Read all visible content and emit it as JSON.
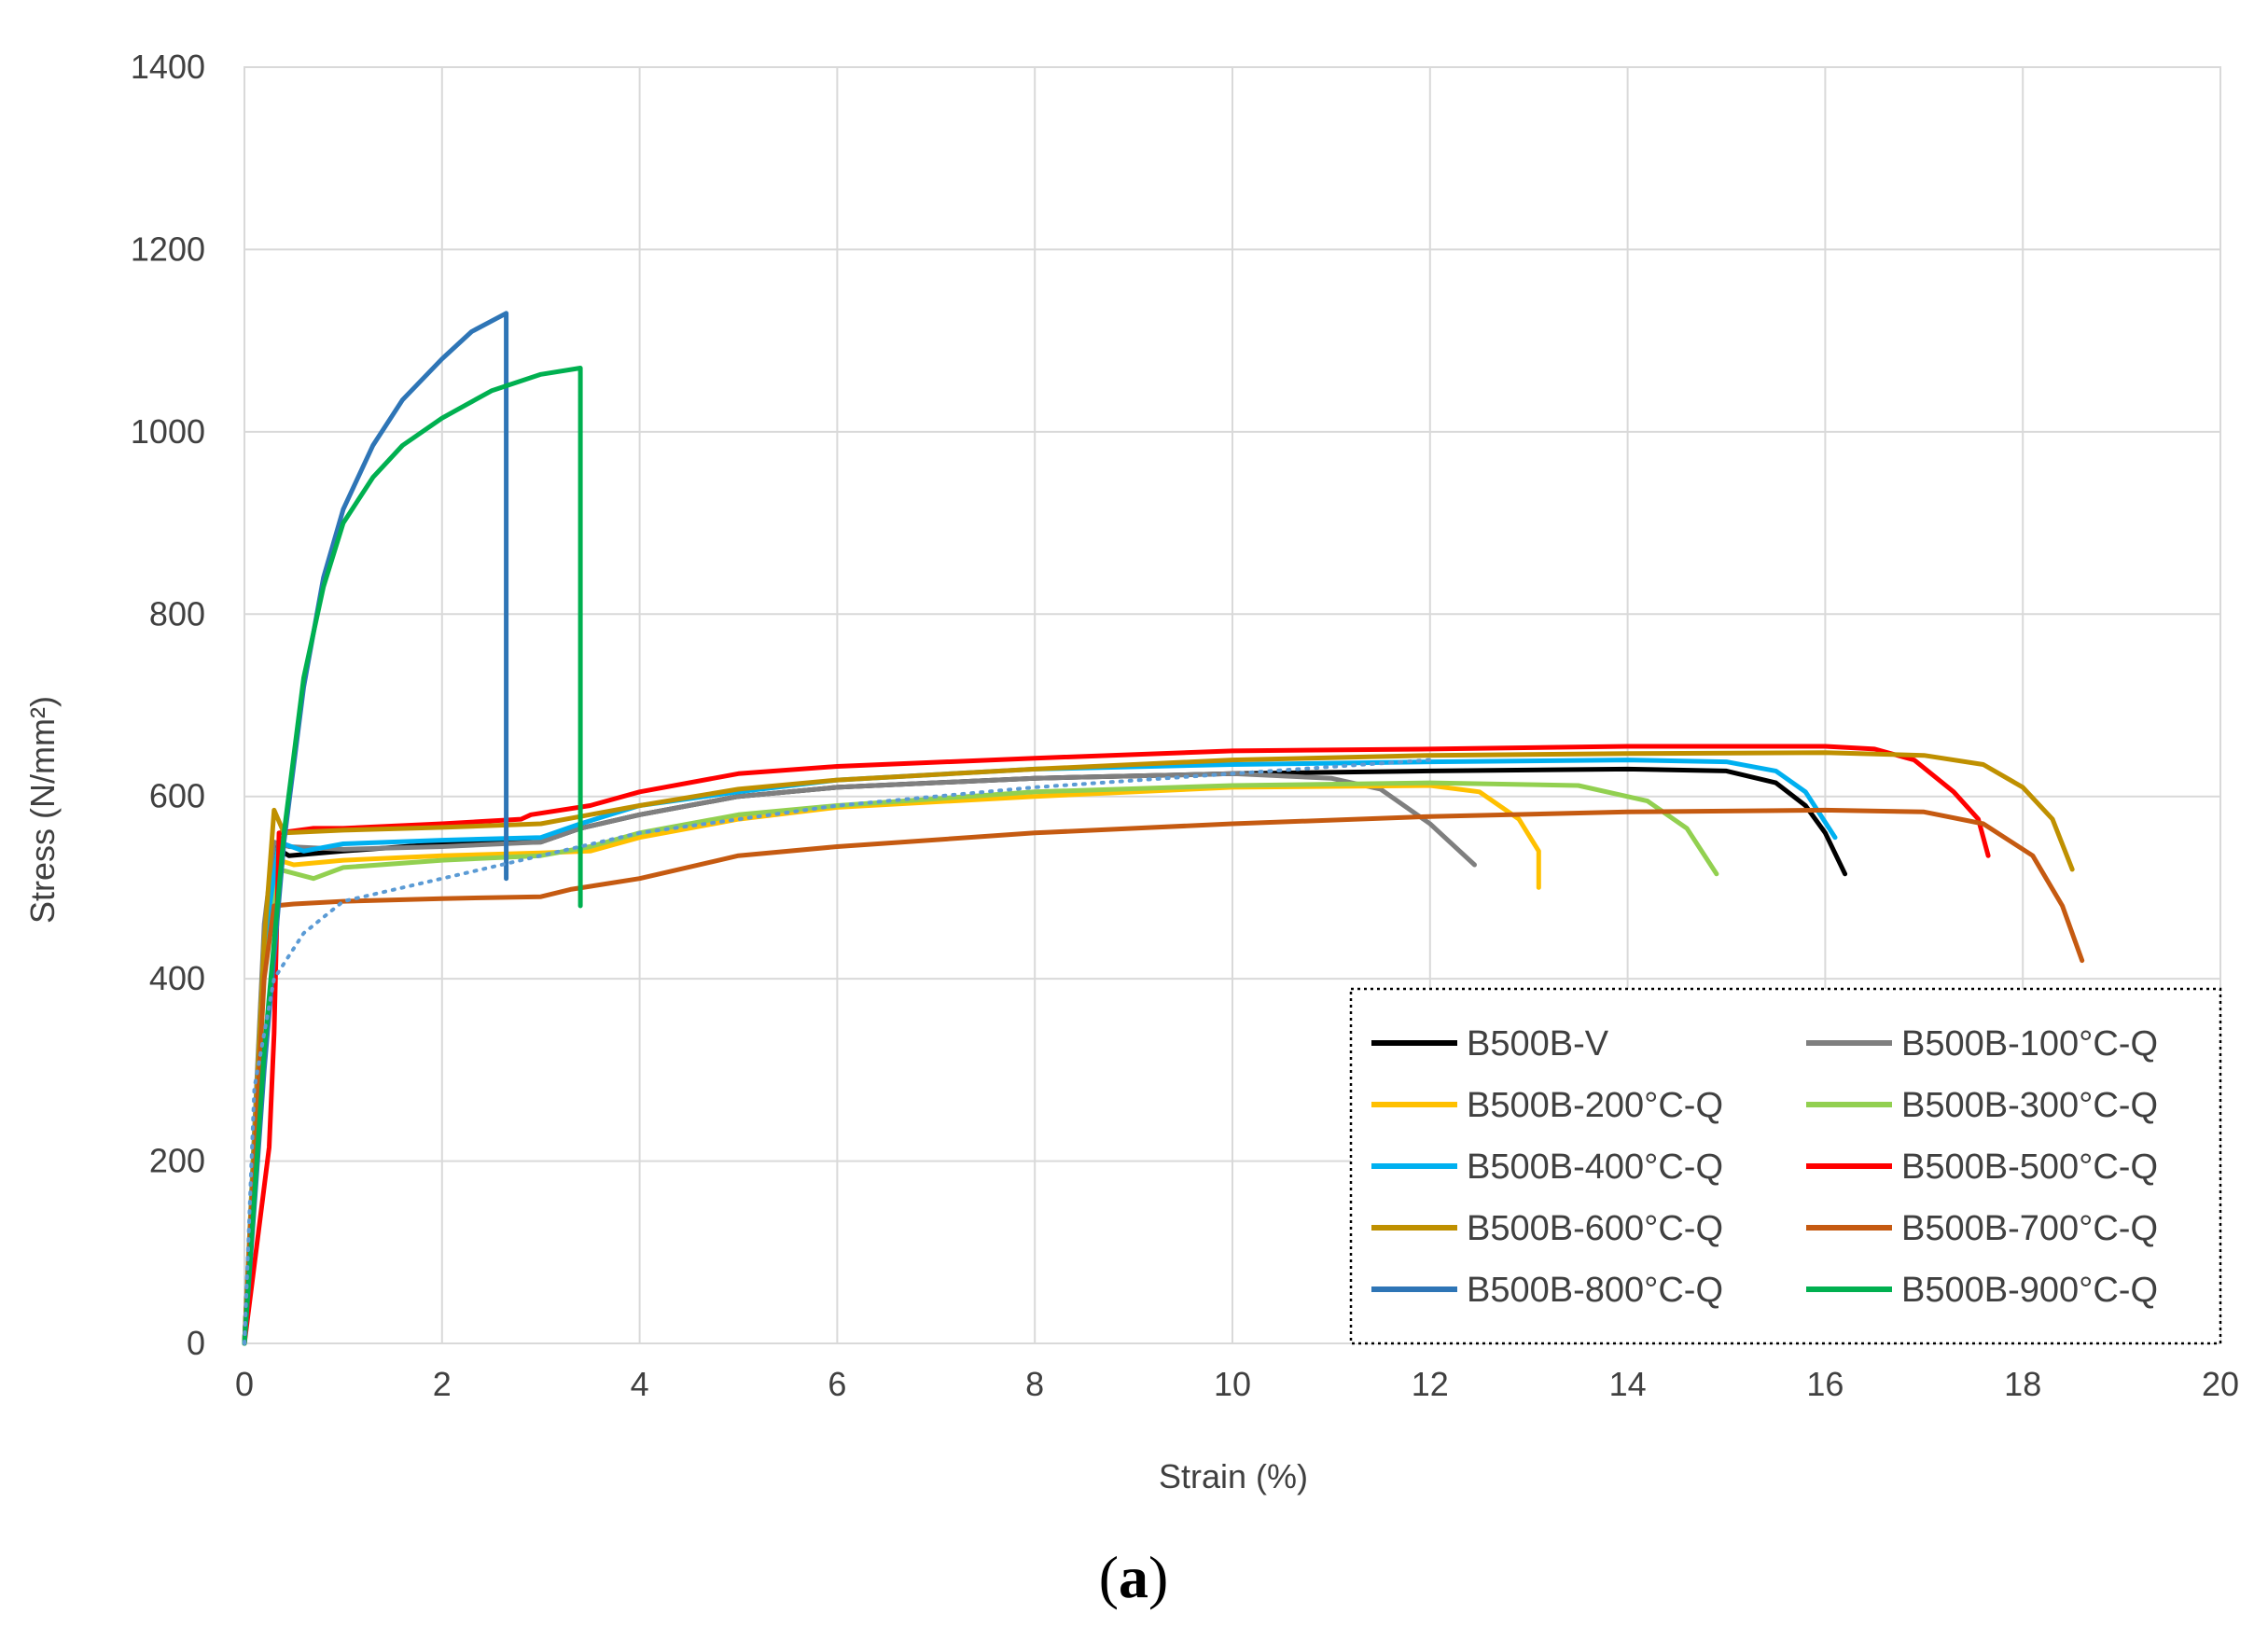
{
  "chart_data": {
    "type": "line",
    "title": "",
    "xlabel": "Strain (%)",
    "ylabel": "Stress (N/mm²)",
    "xlim": [
      0,
      20
    ],
    "ylim": [
      0,
      1400
    ],
    "xticks": [
      0,
      2,
      4,
      6,
      8,
      10,
      12,
      14,
      16,
      18,
      20
    ],
    "yticks": [
      0,
      200,
      400,
      600,
      800,
      1000,
      1200,
      1400
    ],
    "grid": true,
    "legend_position": "bottom-right",
    "caption": {
      "open": "(",
      "letter": "a",
      "close": ")"
    },
    "series": [
      {
        "name": "B500B-V",
        "color": "#000000",
        "style": "solid",
        "points": [
          [
            0,
            0
          ],
          [
            0.2,
            450
          ],
          [
            0.3,
            545
          ],
          [
            0.45,
            535
          ],
          [
            1,
            540
          ],
          [
            2,
            548
          ],
          [
            3,
            550
          ],
          [
            3.4,
            565
          ],
          [
            4,
            580
          ],
          [
            5,
            600
          ],
          [
            6,
            610
          ],
          [
            8,
            620
          ],
          [
            10,
            625
          ],
          [
            12,
            628
          ],
          [
            14,
            630
          ],
          [
            15,
            628
          ],
          [
            15.5,
            615
          ],
          [
            15.8,
            590
          ],
          [
            16,
            560
          ],
          [
            16.2,
            515
          ]
        ]
      },
      {
        "name": "B500B-100°C-Q",
        "color": "#7f7f7f",
        "style": "solid",
        "points": [
          [
            0,
            0
          ],
          [
            0.2,
            460
          ],
          [
            0.3,
            550
          ],
          [
            0.45,
            545
          ],
          [
            1,
            542
          ],
          [
            2,
            545
          ],
          [
            3,
            550
          ],
          [
            3.4,
            565
          ],
          [
            4,
            580
          ],
          [
            5,
            600
          ],
          [
            6,
            610
          ],
          [
            8,
            620
          ],
          [
            10,
            625
          ],
          [
            11,
            620
          ],
          [
            11.5,
            608
          ],
          [
            12,
            570
          ],
          [
            12.45,
            525
          ]
        ]
      },
      {
        "name": "B500B-200°C-Q",
        "color": "#ffc000",
        "style": "solid",
        "points": [
          [
            0,
            0
          ],
          [
            0.2,
            440
          ],
          [
            0.35,
            530
          ],
          [
            0.5,
            525
          ],
          [
            1,
            530
          ],
          [
            2,
            535
          ],
          [
            3,
            538
          ],
          [
            3.5,
            540
          ],
          [
            4,
            555
          ],
          [
            5,
            575
          ],
          [
            6,
            588
          ],
          [
            8,
            600
          ],
          [
            10,
            610
          ],
          [
            12,
            612
          ],
          [
            12.5,
            605
          ],
          [
            12.9,
            575
          ],
          [
            13.1,
            540
          ],
          [
            13.1,
            500
          ]
        ]
      },
      {
        "name": "B500B-300°C-Q",
        "color": "#92d050",
        "style": "solid",
        "points": [
          [
            0,
            0
          ],
          [
            0.2,
            430
          ],
          [
            0.35,
            520
          ],
          [
            0.7,
            510
          ],
          [
            1,
            522
          ],
          [
            2,
            530
          ],
          [
            3,
            535
          ],
          [
            3.5,
            545
          ],
          [
            4,
            560
          ],
          [
            5,
            580
          ],
          [
            6,
            590
          ],
          [
            8,
            605
          ],
          [
            10,
            612
          ],
          [
            12,
            615
          ],
          [
            13.5,
            612
          ],
          [
            14.2,
            595
          ],
          [
            14.6,
            565
          ],
          [
            14.9,
            515
          ]
        ]
      },
      {
        "name": "B500B-400°C-Q",
        "color": "#00b0f0",
        "style": "solid",
        "points": [
          [
            0,
            0
          ],
          [
            0.2,
            440
          ],
          [
            0.35,
            550
          ],
          [
            0.6,
            540
          ],
          [
            1,
            548
          ],
          [
            2,
            552
          ],
          [
            3,
            555
          ],
          [
            3.4,
            570
          ],
          [
            4,
            590
          ],
          [
            5,
            605
          ],
          [
            6,
            618
          ],
          [
            8,
            630
          ],
          [
            10,
            635
          ],
          [
            12,
            638
          ],
          [
            14,
            640
          ],
          [
            15,
            638
          ],
          [
            15.5,
            628
          ],
          [
            15.8,
            605
          ],
          [
            16.1,
            555
          ]
        ]
      },
      {
        "name": "B500B-500°C-Q",
        "color": "#ff0000",
        "style": "solid",
        "points": [
          [
            0,
            0
          ],
          [
            0.25,
            215
          ],
          [
            0.3,
            340
          ],
          [
            0.35,
            560
          ],
          [
            0.7,
            565
          ],
          [
            1,
            565
          ],
          [
            2,
            570
          ],
          [
            2.8,
            575
          ],
          [
            2.9,
            580
          ],
          [
            3.5,
            590
          ],
          [
            4,
            605
          ],
          [
            5,
            625
          ],
          [
            6,
            633
          ],
          [
            8,
            642
          ],
          [
            10,
            650
          ],
          [
            12,
            652
          ],
          [
            14,
            655
          ],
          [
            16,
            655
          ],
          [
            16.5,
            652
          ],
          [
            16.9,
            640
          ],
          [
            17.3,
            605
          ],
          [
            17.55,
            575
          ],
          [
            17.65,
            535
          ]
        ]
      },
      {
        "name": "B500B-600°C-Q",
        "color": "#bf9000",
        "style": "solid",
        "points": [
          [
            0,
            0
          ],
          [
            0.2,
            440
          ],
          [
            0.3,
            585
          ],
          [
            0.4,
            560
          ],
          [
            1,
            563
          ],
          [
            2,
            566
          ],
          [
            3,
            570
          ],
          [
            3.4,
            578
          ],
          [
            4,
            590
          ],
          [
            5,
            608
          ],
          [
            6,
            618
          ],
          [
            8,
            630
          ],
          [
            10,
            640
          ],
          [
            12,
            645
          ],
          [
            14,
            647
          ],
          [
            16,
            648
          ],
          [
            17,
            645
          ],
          [
            17.6,
            635
          ],
          [
            18,
            610
          ],
          [
            18.3,
            575
          ],
          [
            18.5,
            520
          ]
        ]
      },
      {
        "name": "B500B-700°C-Q",
        "color": "#c55a11",
        "style": "solid",
        "points": [
          [
            0,
            0
          ],
          [
            0.2,
            400
          ],
          [
            0.3,
            480
          ],
          [
            0.5,
            482
          ],
          [
            1,
            485
          ],
          [
            2,
            488
          ],
          [
            3,
            490
          ],
          [
            3.3,
            498
          ],
          [
            4,
            510
          ],
          [
            5,
            535
          ],
          [
            6,
            545
          ],
          [
            8,
            560
          ],
          [
            10,
            570
          ],
          [
            12,
            578
          ],
          [
            14,
            583
          ],
          [
            16,
            585
          ],
          [
            17,
            583
          ],
          [
            17.6,
            570
          ],
          [
            18.1,
            535
          ],
          [
            18.4,
            480
          ],
          [
            18.6,
            420
          ]
        ]
      },
      {
        "name": "B500B-800°C-Q",
        "color": "#2e75b6",
        "style": "solid",
        "points": [
          [
            0,
            0
          ],
          [
            0.2,
            300
          ],
          [
            0.4,
            550
          ],
          [
            0.6,
            720
          ],
          [
            0.8,
            840
          ],
          [
            1,
            915
          ],
          [
            1.3,
            985
          ],
          [
            1.6,
            1035
          ],
          [
            2,
            1080
          ],
          [
            2.3,
            1110
          ],
          [
            2.65,
            1130
          ],
          [
            2.65,
            510
          ]
        ]
      },
      {
        "name": "B500B-900°C-Q",
        "color": "#00b050",
        "style": "solid",
        "points": [
          [
            0,
            0
          ],
          [
            0.2,
            320
          ],
          [
            0.4,
            560
          ],
          [
            0.6,
            730
          ],
          [
            0.8,
            830
          ],
          [
            1,
            900
          ],
          [
            1.3,
            950
          ],
          [
            1.6,
            985
          ],
          [
            2,
            1015
          ],
          [
            2.5,
            1045
          ],
          [
            3,
            1063
          ],
          [
            3.4,
            1070
          ],
          [
            3.4,
            480
          ]
        ]
      },
      {
        "name": "",
        "color": "#5b9bd5",
        "style": "dotted",
        "points": [
          [
            0,
            0
          ],
          [
            0.1,
            280
          ],
          [
            0.3,
            400
          ],
          [
            0.6,
            450
          ],
          [
            1,
            485
          ],
          [
            2,
            510
          ],
          [
            3,
            535
          ],
          [
            4,
            560
          ],
          [
            6,
            590
          ],
          [
            8,
            610
          ],
          [
            10,
            625
          ],
          [
            12,
            640
          ]
        ]
      }
    ]
  }
}
